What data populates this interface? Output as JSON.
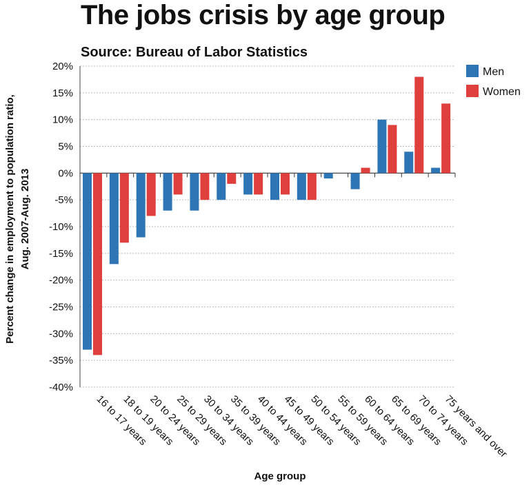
{
  "title": "The jobs crisis by age group",
  "subtitle": "Source: Bureau of Labor Statistics",
  "chart_data": {
    "type": "bar",
    "title": "The jobs crisis by age group",
    "subtitle": "Source: Bureau of Labor Statistics",
    "xlabel": "Age group",
    "ylabel_lines": [
      "Percent change in employment to population ratio,",
      "Aug. 2007-Aug. 2013"
    ],
    "ylim": [
      -40,
      20
    ],
    "yticks": [
      20,
      15,
      10,
      5,
      0,
      -5,
      -10,
      -15,
      -20,
      -25,
      -30,
      -35,
      -40
    ],
    "ytick_labels": [
      "20%",
      "15%",
      "10%",
      "5%",
      "0%",
      "-5%",
      "-10%",
      "-15%",
      "-20%",
      "-25%",
      "-30%",
      "-35%",
      "-40%"
    ],
    "categories": [
      "16 to 17 years",
      "18 to 19 years",
      "20 to 24 years",
      "25 to 29 years",
      "30 to 34 years",
      "35 to 39 years",
      "40 to 44 years",
      "45 to 49 years",
      "50 to 54 years",
      "55 to 59 years",
      "60 to 64 years",
      "65 to 69 years",
      "70 to 74 years",
      "75 years and over"
    ],
    "series": [
      {
        "name": "Men",
        "color": "#2e75b6",
        "values": [
          -33,
          -17,
          -12,
          -7,
          -7,
          -5,
          -4,
          -5,
          -5,
          -1,
          -3,
          10,
          4,
          1
        ]
      },
      {
        "name": "Women",
        "color": "#e0403d",
        "values": [
          -34,
          -13,
          -8,
          -4,
          -5,
          -2,
          -4,
          -4,
          -5,
          0,
          1,
          9,
          18,
          13
        ]
      }
    ],
    "grid": "horizontal dotted",
    "legend_position": "top-right"
  }
}
